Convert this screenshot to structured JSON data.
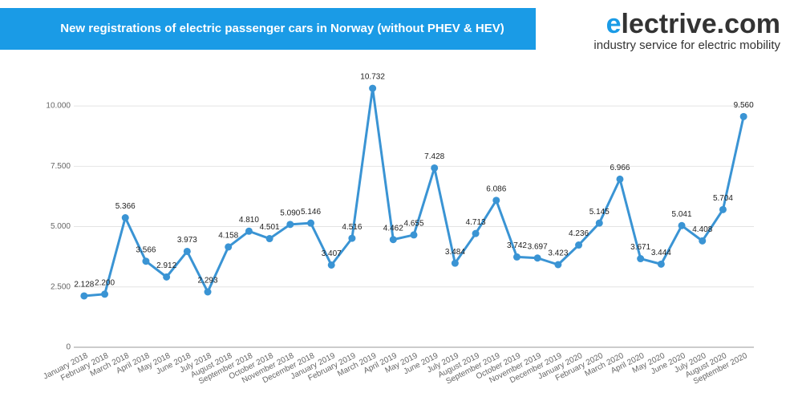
{
  "chart_data": {
    "type": "line",
    "title": "New registrations of electric passenger cars in Norway (without PHEV & HEV)",
    "categories": [
      "January 2018",
      "February 2018",
      "March 2018",
      "April 2018",
      "May 2018",
      "June 2018",
      "July 2018",
      "August 2018",
      "September 2018",
      "October 2018",
      "November 2018",
      "December 2018",
      "January 2019",
      "February 2019",
      "March 2019",
      "April 2019",
      "May 2019",
      "June 2019",
      "July 2019",
      "August 2019",
      "September 2019",
      "October 2019",
      "November 2019",
      "December 2019",
      "January 2020",
      "February 2020",
      "March 2020",
      "April 2020",
      "May 2020",
      "June 2020",
      "July 2020",
      "August 2020",
      "September 2020"
    ],
    "values": [
      2128,
      2200,
      5366,
      3566,
      2912,
      3973,
      2293,
      4158,
      4810,
      4501,
      5090,
      5146,
      3407,
      4516,
      10732,
      4462,
      4655,
      7428,
      3484,
      4713,
      6086,
      3742,
      3697,
      3423,
      4236,
      5145,
      6966,
      3671,
      3444,
      5041,
      4408,
      5704,
      9560
    ],
    "value_labels": [
      "2.128",
      "2.200",
      "5.366",
      "3.566",
      "2.912",
      "3.973",
      "2.293",
      "4.158",
      "4.810",
      "4.501",
      "5.090",
      "5.146",
      "3.407",
      "4.516",
      "10.732",
      "4.462",
      "4.655",
      "7.428",
      "3.484",
      "4.713",
      "6.086",
      "3.742",
      "3.697",
      "3.423",
      "4.236",
      "5.145",
      "6.966",
      "3.671",
      "3.444",
      "5.041",
      "4.408",
      "5.704",
      "9.560"
    ],
    "color": "#3a94d4",
    "ylim": [
      0,
      11000
    ],
    "yticks": [
      0,
      {
        "value": 2500,
        "label": "2.500"
      },
      {
        "value": 5000,
        "label": "5.000"
      },
      {
        "value": 7500,
        "label": "7.500"
      },
      {
        "value": 10000,
        "label": "10.000"
      }
    ],
    "grid": true
  },
  "logo": {
    "mark": "e",
    "text": "lectrive.com",
    "tagline": "industry service for electric mobility"
  }
}
